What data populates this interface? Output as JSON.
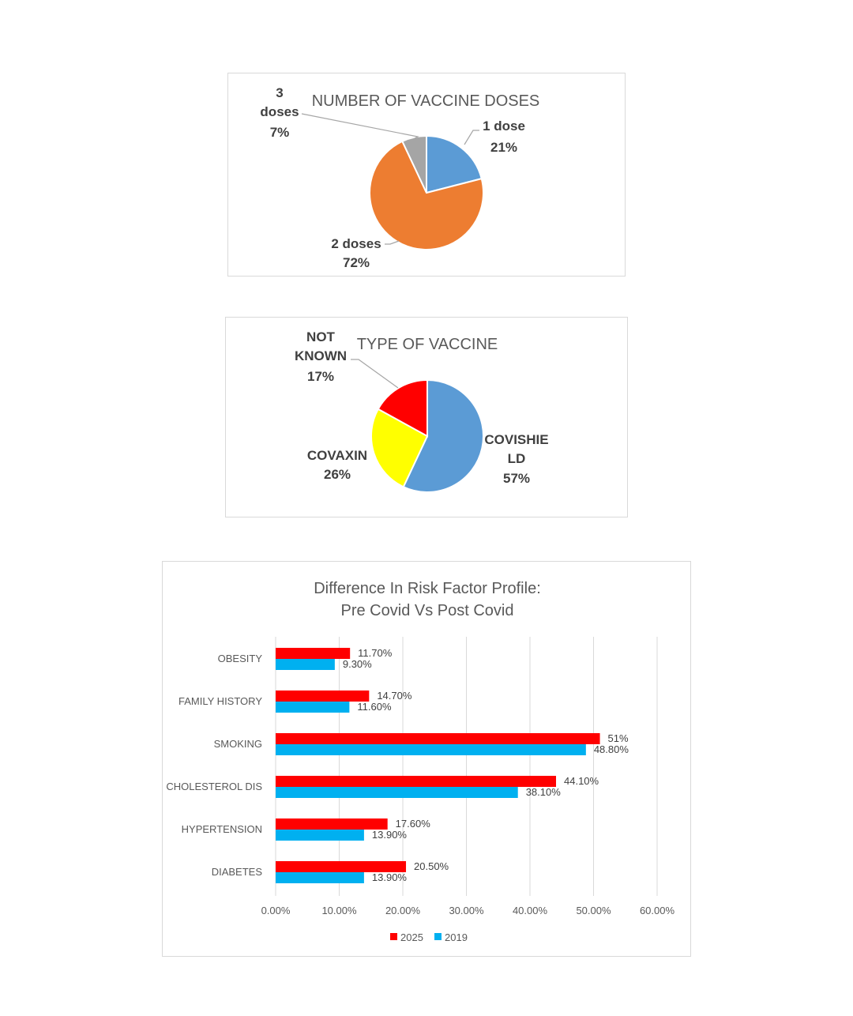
{
  "chart_data": [
    {
      "type": "pie",
      "title": "NUMBER OF VACCINE DOSES",
      "slices": [
        {
          "label": "1 dose",
          "value": 21,
          "display": "21%",
          "color": "#5b9bd5"
        },
        {
          "label": "2 doses",
          "value": 72,
          "display": "72%",
          "color": "#ed7d31"
        },
        {
          "label": "3 doses",
          "value": 7,
          "display": "7%",
          "color": "#a5a5a5"
        }
      ]
    },
    {
      "type": "pie",
      "title": "TYPE OF VACCINE",
      "slices": [
        {
          "label": "COVISHIELD",
          "value": 57,
          "display": "57%",
          "color": "#5b9bd5"
        },
        {
          "label": "COVAXIN",
          "value": 26,
          "display": "26%",
          "color": "#ffff00"
        },
        {
          "label": "NOT KNOWN",
          "value": 17,
          "display": "17%",
          "color": "#ff0000"
        }
      ]
    },
    {
      "type": "bar",
      "orientation": "horizontal",
      "title": "Difference In Risk Factor Profile: Pre Covid Vs Post Covid",
      "categories": [
        "OBESITY",
        "FAMILY HISTORY",
        "SMOKING",
        "CHOLESTEROL DIS",
        "HYPERTENSION",
        "DIABETES"
      ],
      "series": [
        {
          "name": "2025",
          "color": "#ff0000",
          "values": [
            11.7,
            14.7,
            51,
            44.1,
            17.6,
            20.5
          ],
          "labels": [
            "11.70%",
            "14.70%",
            "51%",
            "44.10%",
            "17.60%",
            "20.50%"
          ]
        },
        {
          "name": "2019",
          "color": "#00b0f0",
          "values": [
            9.3,
            11.6,
            48.8,
            38.1,
            13.9,
            13.9
          ],
          "labels": [
            "9.30%",
            "11.60%",
            "48.80%",
            "38.10%",
            "13.90%",
            "13.90%"
          ]
        }
      ],
      "xlim": [
        0,
        60
      ],
      "xticks": [
        "0.00%",
        "10.00%",
        "20.00%",
        "30.00%",
        "40.00%",
        "50.00%",
        "60.00%"
      ],
      "grid": true,
      "legend": "bottom"
    }
  ]
}
